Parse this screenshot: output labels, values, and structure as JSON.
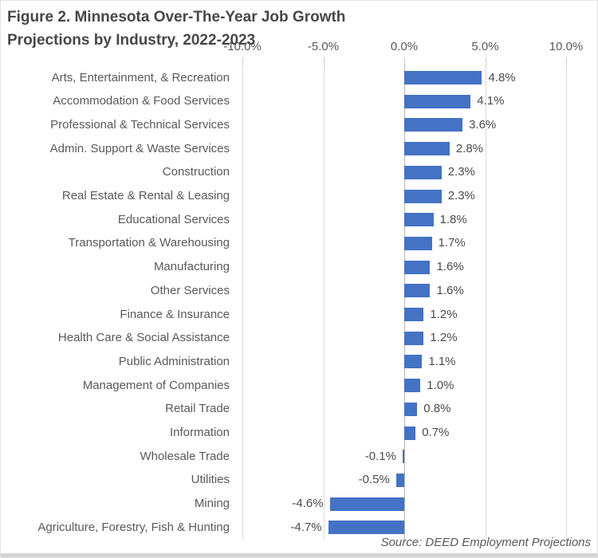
{
  "figure": {
    "title_line1": "Figure 2. Minnesota Over-The-Year Job Growth",
    "title_line2": "Projections by Industry, 2022-2023",
    "source": "Source: DEED Employment Projections"
  },
  "colors": {
    "bar": "#4472C4",
    "gridline": "#D9D9D9",
    "zero_axis": "#B5B5B5",
    "text": "#595959",
    "title_text": "#474747",
    "bottom_strip": "#D4D4D4"
  },
  "chart_data": {
    "type": "bar",
    "orientation": "horizontal",
    "title": "Figure 2. Minnesota Over-The-Year Job Growth Projections by Industry, 2022-2023",
    "source": "Source: DEED Employment Projections",
    "grid": true,
    "x_axis": {
      "position": "top",
      "range": [
        -10,
        10
      ],
      "ticks": [
        -10,
        -5,
        0,
        5,
        10
      ],
      "tick_labels": [
        "-10.0%",
        "-5.0%",
        "0.0%",
        "5.0%",
        "10.0%"
      ]
    },
    "categories": [
      "Arts, Entertainment, & Recreation",
      "Accommodation & Food Services",
      "Professional & Technical Services",
      "Admin. Support & Waste Services",
      "Construction",
      "Real Estate & Rental & Leasing",
      "Educational Services",
      "Transportation & Warehousing",
      "Manufacturing",
      "Other Services",
      "Finance & Insurance",
      "Health Care & Social Assistance",
      "Public Administration",
      "Management of Companies",
      "Retail Trade",
      "Information",
      "Wholesale Trade",
      "Utilities",
      "Mining",
      "Agriculture, Forestry, Fish & Hunting"
    ],
    "values": [
      4.8,
      4.1,
      3.6,
      2.8,
      2.3,
      2.3,
      1.8,
      1.7,
      1.6,
      1.6,
      1.2,
      1.2,
      1.1,
      1.0,
      0.8,
      0.7,
      -0.1,
      -0.5,
      -4.6,
      -4.7
    ],
    "value_labels": [
      "4.8%",
      "4.1%",
      "3.6%",
      "2.8%",
      "2.3%",
      "2.3%",
      "1.8%",
      "1.7%",
      "1.6%",
      "1.6%",
      "1.2%",
      "1.2%",
      "1.1%",
      "1.0%",
      "0.8%",
      "0.7%",
      "-0.1%",
      "-0.5%",
      "-4.6%",
      "-4.7%"
    ]
  }
}
